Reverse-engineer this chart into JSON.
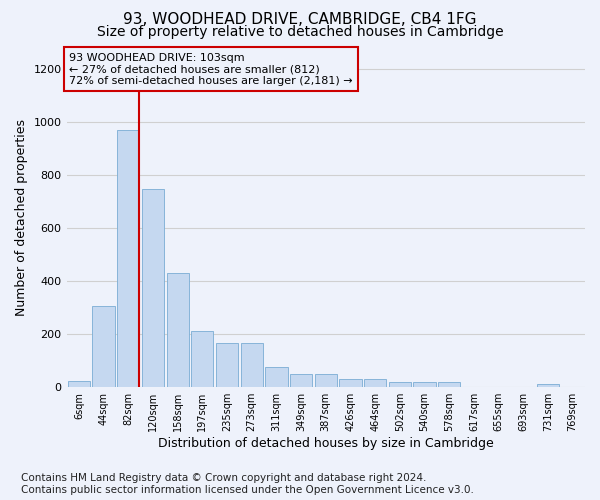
{
  "title": "93, WOODHEAD DRIVE, CAMBRIDGE, CB4 1FG",
  "subtitle": "Size of property relative to detached houses in Cambridge",
  "xlabel": "Distribution of detached houses by size in Cambridge",
  "ylabel": "Number of detached properties",
  "footer_line1": "Contains HM Land Registry data © Crown copyright and database right 2024.",
  "footer_line2": "Contains public sector information licensed under the Open Government Licence v3.0.",
  "bar_labels": [
    "6sqm",
    "44sqm",
    "82sqm",
    "120sqm",
    "158sqm",
    "197sqm",
    "235sqm",
    "273sqm",
    "311sqm",
    "349sqm",
    "387sqm",
    "426sqm",
    "464sqm",
    "502sqm",
    "540sqm",
    "578sqm",
    "617sqm",
    "655sqm",
    "693sqm",
    "731sqm",
    "769sqm"
  ],
  "bar_values": [
    25,
    305,
    970,
    745,
    430,
    210,
    165,
    165,
    75,
    50,
    50,
    30,
    30,
    18,
    18,
    18,
    0,
    0,
    0,
    13,
    0
  ],
  "bar_color": "#c5d8f0",
  "bar_edgecolor": "#7aadd4",
  "property_label": "93 WOODHEAD DRIVE: 103sqm",
  "annotation_line1": "← 27% of detached houses are smaller (812)",
  "annotation_line2": "72% of semi-detached houses are larger (2,181) →",
  "vline_color": "#cc0000",
  "annotation_box_color": "#cc0000",
  "ylim": [
    0,
    1280
  ],
  "yticks": [
    0,
    200,
    400,
    600,
    800,
    1000,
    1200
  ],
  "grid_color": "#d0d0d0",
  "bg_color": "#eef2fb",
  "title_fontsize": 11,
  "subtitle_fontsize": 10,
  "ylabel_fontsize": 9,
  "xlabel_fontsize": 9,
  "tick_fontsize": 7,
  "footer_fontsize": 7.5
}
